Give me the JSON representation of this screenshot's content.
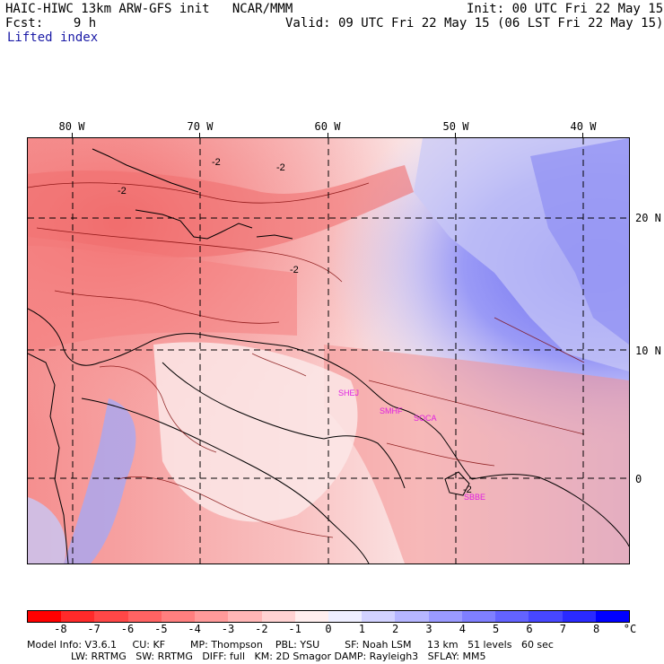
{
  "header": {
    "title": "HAIC-HIWC 13km ARW-GFS init   NCAR/MMM",
    "init": "Init: 00 UTC Fri 22 May 15",
    "fcst": "Fcst:    9 h",
    "valid": "Valid: 09 UTC Fri 22 May 15 (06 LST Fri 22 May 15)",
    "field": "Lifted index"
  },
  "map": {
    "lon_labels": [
      "80 W",
      "70 W",
      "60 W",
      "50 W",
      "40 W"
    ],
    "lat_labels": [
      "20 N",
      "10 N",
      "0"
    ],
    "contour_labels": [
      "-2",
      "-2",
      "-2",
      "-2",
      "-2"
    ],
    "cities": [
      "SHEJ",
      "SMHF",
      "SOCA",
      "SBBE"
    ],
    "city_color": "#e020e0"
  },
  "colorbar": {
    "unit": "°C",
    "tick_labels": [
      "-8",
      "-7",
      "-6",
      "-5",
      "-4",
      "-3",
      "-2",
      "-1",
      "0",
      "1",
      "2",
      "3",
      "4",
      "5",
      "6",
      "7",
      "8"
    ],
    "colors": [
      "#ff0000",
      "#ff2a2a",
      "#ff4747",
      "#ff6363",
      "#ff7f7f",
      "#ff9a9a",
      "#ffb6b6",
      "#ffd2d2",
      "#ffeeee",
      "#eeeeff",
      "#d2d2ff",
      "#b6b6ff",
      "#9a9aff",
      "#7f7fff",
      "#6363ff",
      "#4747ff",
      "#2a2aff",
      "#0000ff"
    ]
  },
  "footer": {
    "line1": "Model Info: V3.6.1     CU: KF        MP: Thompson    PBL: YSU        SF: Noah LSM     13 km   51 levels   60 sec",
    "line2": "              LW: RRTMG   SW: RRTMG   DIFF: full   KM: 2D Smagor DAMP: Rayleigh3   SFLAY: MM5"
  }
}
